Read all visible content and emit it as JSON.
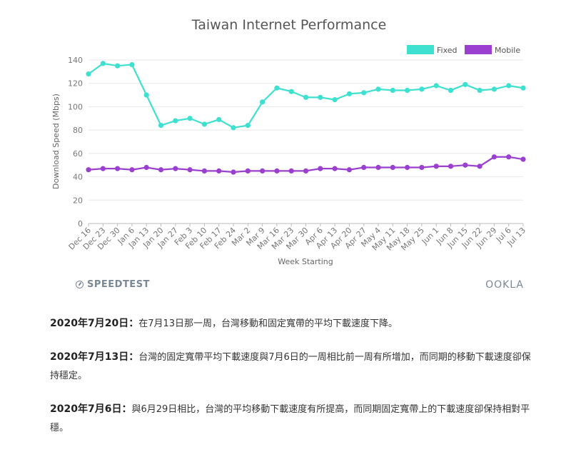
{
  "chart_data": {
    "type": "line",
    "title": "Taiwan Internet Performance",
    "xlabel": "Week Starting",
    "ylabel": "Download Speed (Mbps)",
    "ylim": [
      0,
      140
    ],
    "yticks": [
      0,
      20,
      40,
      60,
      80,
      100,
      120,
      140
    ],
    "grid": true,
    "legend_position": "top-right",
    "categories": [
      "Dec 16",
      "Dec 23",
      "Dec 30",
      "Jan 6",
      "Jan 13",
      "Jan 20",
      "Jan 27",
      "Feb 3",
      "Feb 10",
      "Feb 17",
      "Feb 24",
      "Mar 2",
      "Mar 9",
      "Mar 16",
      "Mar 23",
      "Mar 30",
      "Apr 6",
      "Apr 13",
      "Apr 20",
      "Apr 27",
      "May 4",
      "May 11",
      "May 18",
      "May 25",
      "Jun 1",
      "Jun 8",
      "Jun 15",
      "Jun 22",
      "Jun 29",
      "Jul 6",
      "Jul 13"
    ],
    "series": [
      {
        "name": "Fixed",
        "color": "#3ee0cf",
        "values": [
          128,
          137,
          135,
          136,
          110,
          84,
          88,
          90,
          85,
          89,
          82,
          84,
          104,
          116,
          113,
          108,
          108,
          106,
          111,
          112,
          115,
          114,
          114,
          115,
          118,
          114,
          119,
          114,
          115,
          118,
          116
        ]
      },
      {
        "name": "Mobile",
        "color": "#9a3fd0",
        "values": [
          46,
          47,
          47,
          46,
          48,
          46,
          47,
          46,
          45,
          45,
          44,
          45,
          45,
          45,
          45,
          45,
          47,
          47,
          46,
          48,
          48,
          48,
          48,
          48,
          49,
          49,
          50,
          49,
          57,
          57,
          55
        ]
      }
    ]
  },
  "branding": {
    "speedtest": "SPEEDTEST",
    "ookla": "OOKLA"
  },
  "updates": [
    {
      "date": "2020年7月20日：",
      "text": "在7月13日那一周，台灣移動和固定寬帶的平均下載速度下降。"
    },
    {
      "date": "2020年7月13日：",
      "text": "台灣的固定寬帶平均下載速度與7月6日的一周相比前一周有所增加，而同期的移動下載速度卻保持穩定。"
    },
    {
      "date": "2020年7月6日：",
      "text": "與6月29日相比，台灣的平均移動下載速度有所提高，而同期固定寬帶上的下載速度卻保持相對平穩。"
    }
  ]
}
